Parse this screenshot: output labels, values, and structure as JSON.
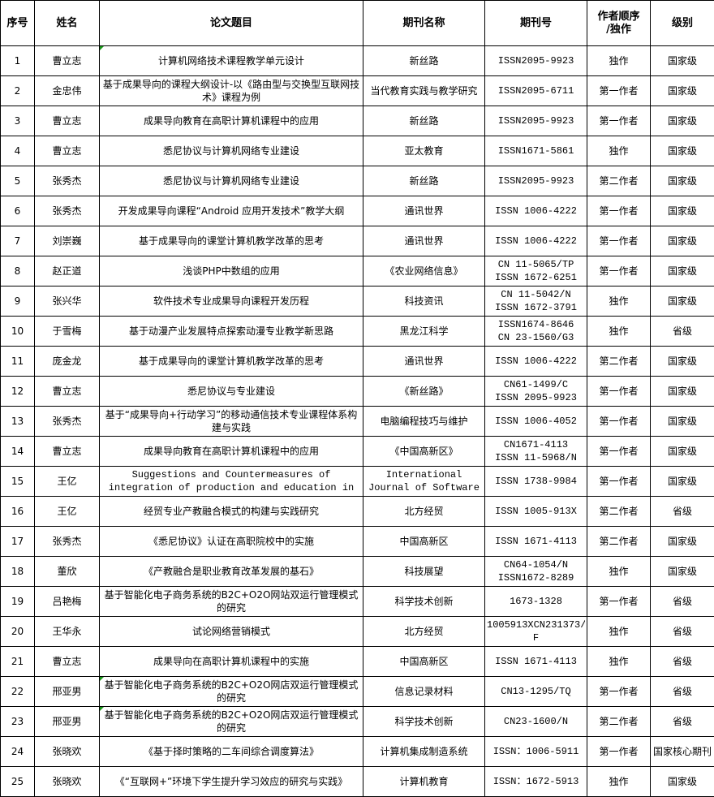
{
  "headers": [
    "序号",
    "姓名",
    "论文题目",
    "期刊名称",
    "期刊号",
    "作者顺序\n/独作",
    "级别"
  ],
  "rows": [
    {
      "no": "1",
      "name": "曹立志",
      "title": "计算机网络技术课程教学单元设计",
      "journal": "新丝路",
      "issn": "ISSN2095-9923",
      "order": "独作",
      "level": "国家级",
      "flag": true
    },
    {
      "no": "2",
      "name": "金忠伟",
      "title": "基于成果导向的课程大纲设计-以《路由型与交换型互联网技术》课程为例",
      "journal": "当代教育实践与教学研究",
      "issn": "ISSN2095-6711",
      "order": "第一作者",
      "level": "国家级"
    },
    {
      "no": "3",
      "name": "曹立志",
      "title": "成果导向教育在高职计算机课程中的应用",
      "journal": "新丝路",
      "issn": "ISSN2095-9923",
      "order": "第一作者",
      "level": "国家级"
    },
    {
      "no": "4",
      "name": "曹立志",
      "title": "悉尼协议与计算机网络专业建设",
      "journal": "亚太教育",
      "issn": "ISSN1671-5861",
      "order": "独作",
      "level": "国家级"
    },
    {
      "no": "5",
      "name": "张秀杰",
      "title": "悉尼协议与计算机网络专业建设",
      "journal": "新丝路",
      "issn": "ISSN2095-9923",
      "order": "第二作者",
      "level": "国家级"
    },
    {
      "no": "6",
      "name": "张秀杰",
      "title": "开发成果导向课程“Android 应用开发技术”教学大纲",
      "journal": "通讯世界",
      "issn": "ISSN 1006-4222",
      "order": "第一作者",
      "level": "国家级"
    },
    {
      "no": "7",
      "name": "刘崇巍",
      "title": "基于成果导向的课堂计算机教学改革的思考",
      "journal": "通讯世界",
      "issn": "ISSN 1006-4222",
      "order": "第一作者",
      "level": "国家级"
    },
    {
      "no": "8",
      "name": "赵正道",
      "title": "浅谈PHP中数组的应用",
      "journal": "《农业网络信息》",
      "issn": "CN 11-5065/TP\nISSN 1672-6251",
      "order": "第一作者",
      "level": "国家级"
    },
    {
      "no": "9",
      "name": "张兴华",
      "title": "软件技术专业成果导向课程开发历程",
      "journal": "科技资讯",
      "issn": "CN 11-5042/N\nISSN 1672-3791",
      "order": "独作",
      "level": "国家级"
    },
    {
      "no": "10",
      "name": "于雪梅",
      "title": "基于动漫产业发展特点探索动漫专业教学新思路",
      "journal": "黑龙江科学",
      "issn": "ISSN1674-8646\nCN 23-1560/G3",
      "order": "独作",
      "level": "省级"
    },
    {
      "no": "11",
      "name": "庞金龙",
      "title": "基于成果导向的课堂计算机教学改革的思考",
      "journal": "通讯世界",
      "issn": "ISSN 1006-4222",
      "order": "第二作者",
      "level": "国家级"
    },
    {
      "no": "12",
      "name": "曹立志",
      "title": "悉尼协议与专业建设",
      "journal": "《新丝路》",
      "issn": "CN61-1499/C\nISSN 2095-9923",
      "order": "第一作者",
      "level": "国家级"
    },
    {
      "no": "13",
      "name": "张秀杰",
      "title": "基于“成果导向+行动学习”的移动通信技术专业课程体系构建与实践",
      "journal": "电脑编程技巧与维护",
      "issn": "ISSN 1006-4052",
      "order": "第一作者",
      "level": "国家级"
    },
    {
      "no": "14",
      "name": "曹立志",
      "title": "成果导向教育在高职计算机课程中的应用",
      "journal": "《中国高新区》",
      "issn": "CN1671-4113\nISSN 11-5968/N",
      "order": "第一作者",
      "level": "国家级"
    },
    {
      "no": "15",
      "name": "王亿",
      "title": "Suggestions and Countermeasures of\nintegration of production and education in",
      "journal": "International\nJournal of Software",
      "issn": "ISSN 1738-9984",
      "order": "第一作者",
      "level": "国家级",
      "en": true
    },
    {
      "no": "16",
      "name": "王亿",
      "title": "经贸专业产教融合模式的构建与实践研究",
      "journal": "北方经贸",
      "issn": "ISSN 1005-913X",
      "order": "第二作者",
      "level": "省级"
    },
    {
      "no": "17",
      "name": "张秀杰",
      "title": "《悉尼协议》认证在高职院校中的实施",
      "journal": "中国高新区",
      "issn": "ISSN 1671-4113",
      "order": "第二作者",
      "level": "国家级"
    },
    {
      "no": "18",
      "name": "董欣",
      "title": "《产教融合是职业教育改革发展的基石》",
      "journal": "科技展望",
      "issn": "CN64-1054/N\nISSN1672-8289",
      "order": "独作",
      "level": "国家级"
    },
    {
      "no": "19",
      "name": "吕艳梅",
      "title": "基于智能化电子商务系统的B2C+O2O网站双运行管理模式的研究",
      "journal": "科学技术创新",
      "issn": "1673-1328",
      "order": "第一作者",
      "level": "省级"
    },
    {
      "no": "20",
      "name": "王华永",
      "title": "试论网络营销模式",
      "journal": "北方经贸",
      "issn": "1005913XCN231373/\nF",
      "order": "独作",
      "level": "省级"
    },
    {
      "no": "21",
      "name": "曹立志",
      "title": "成果导向在高职计算机课程中的实施",
      "journal": "中国高新区",
      "issn": "ISSN 1671-4113",
      "order": "独作",
      "level": "省级"
    },
    {
      "no": "22",
      "name": "邢亚男",
      "title": "基于智能化电子商务系统的B2C+O2O网店双运行管理模式的研究",
      "journal": "信息记录材料",
      "issn": "CN13-1295/TQ",
      "order": "第一作者",
      "level": "省级",
      "flag": true
    },
    {
      "no": "23",
      "name": "邢亚男",
      "title": "基于智能化电子商务系统的B2C+O2O网店双运行管理模式的研究",
      "journal": "科学技术创新",
      "issn": "CN23-1600/N",
      "order": "第二作者",
      "level": "省级",
      "flag": true
    },
    {
      "no": "24",
      "name": "张晓欢",
      "title": "《基于择时策略的二车间综合调度算法》",
      "journal": "计算机集成制造系统",
      "issn": "ISSN：1006-5911",
      "order": "第一作者",
      "level": "国家核心期刊"
    },
    {
      "no": "25",
      "name": "张晓欢",
      "title": "《“互联网+”环境下学生提升学习效应的研究与实践》",
      "journal": "计算机教育",
      "issn": "ISSN：1672-5913",
      "order": "独作",
      "level": "国家级"
    }
  ]
}
